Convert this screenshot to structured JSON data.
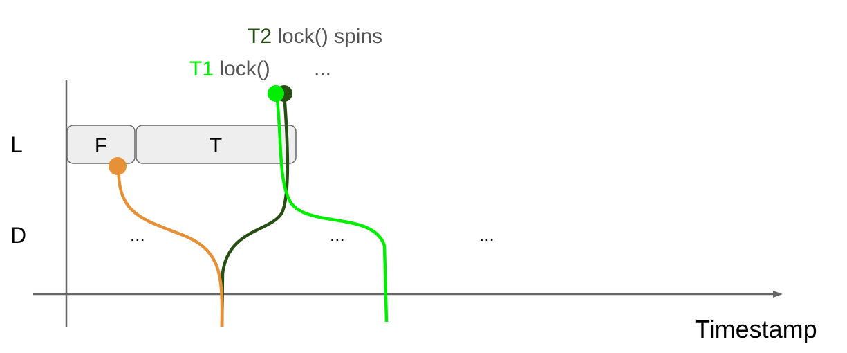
{
  "labels": {
    "t2_name": "T2",
    "t2_text": "lock() spins",
    "t1_name": "T1",
    "t1_text": "lock()",
    "t1_ellipsis": "...",
    "row_l": "L",
    "row_d": "D",
    "x_axis": "Timestamp"
  },
  "blocks": [
    {
      "label": "F"
    },
    {
      "label": "T"
    }
  ],
  "ellipses": [
    "...",
    "...",
    "..."
  ],
  "colors": {
    "t1": "#00ee00",
    "t2": "#274e13",
    "orange": "#e69138",
    "axis": "#666666",
    "gray_text": "#555555",
    "block_fill": "#eeeeee",
    "block_stroke": "#666666"
  }
}
